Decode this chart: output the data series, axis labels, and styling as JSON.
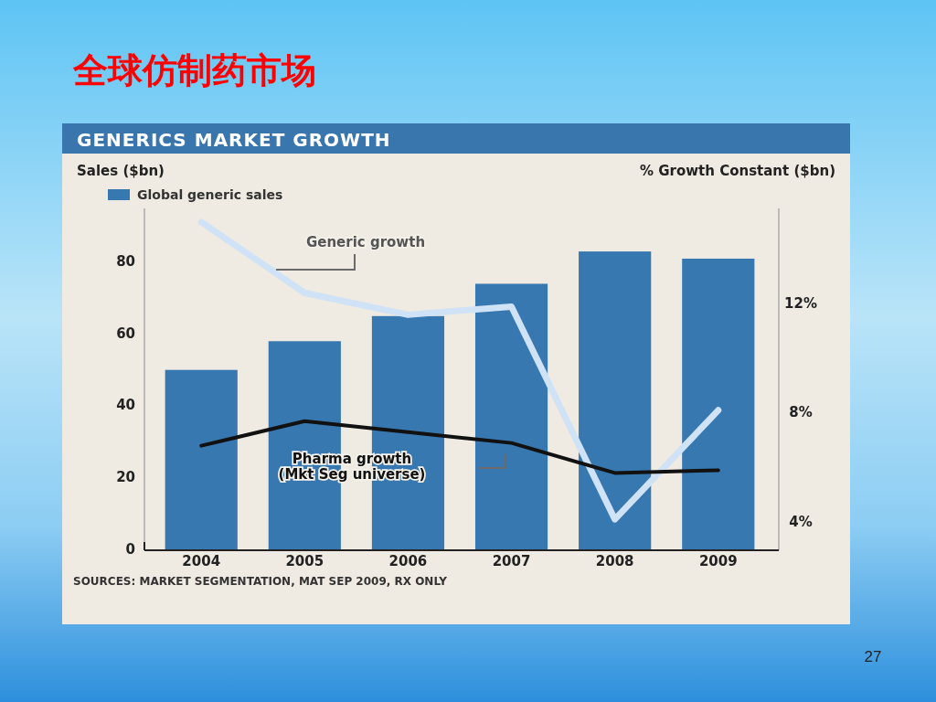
{
  "chart_data": {
    "type": "bar",
    "title": "全球仿制药市场",
    "subtitle": "GENERICS MARKET GROWTH",
    "ylabel": "Sales ($bn)",
    "y2label": "% Growth Constant ($bn)",
    "categories": [
      "2004",
      "2005",
      "2006",
      "2007",
      "2008",
      "2009"
    ],
    "series": [
      {
        "name": "Global generic sales",
        "color": "#3878b0",
        "values": [
          50,
          58,
          65,
          74,
          83,
          81
        ]
      },
      {
        "name": "Generic growth",
        "type": "line",
        "axis": "y2",
        "color": "#cfe2f6",
        "values": [
          15.0,
          12.4,
          11.6,
          11.9,
          4.1,
          8.1
        ]
      },
      {
        "name": "Pharma growth (Mkt Seg universe)",
        "type": "line",
        "axis": "y2",
        "color": "#111111",
        "values": [
          6.8,
          7.7,
          7.3,
          6.9,
          5.8,
          5.9
        ]
      }
    ],
    "ylim": [
      0,
      95
    ],
    "yticks": [
      0,
      20,
      40,
      60,
      80
    ],
    "y2lim": [
      3,
      15.5
    ],
    "y2ticks": [
      {
        "value": 4,
        "label": "4%"
      },
      {
        "value": 8,
        "label": "8%"
      },
      {
        "value": 12,
        "label": "12%"
      }
    ],
    "legend": "top left",
    "line_style": "solid",
    "annotations": [
      "SOURCES: MARKET SEGMENTATION, MAT SEP 2009, RX ONLY",
      "27"
    ]
  }
}
